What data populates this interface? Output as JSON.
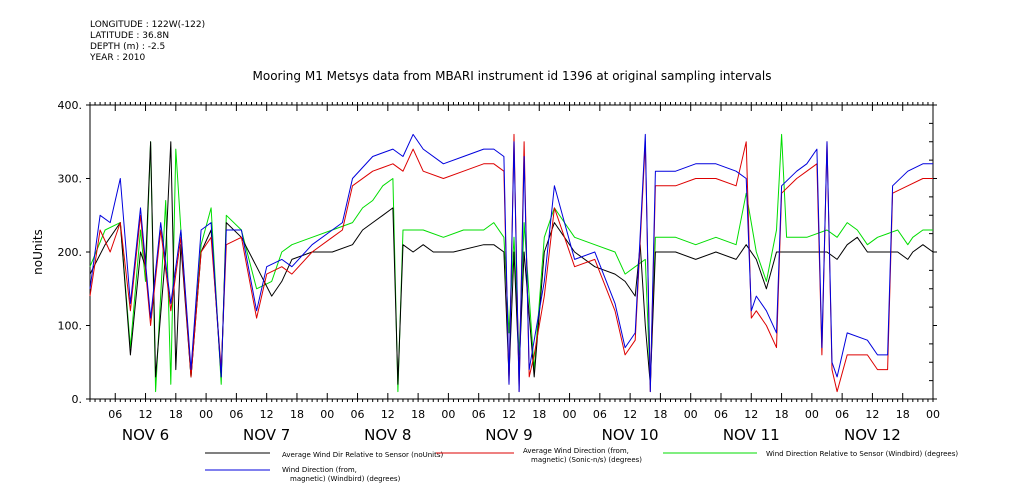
{
  "meta": {
    "longitude": "LONGITUDE : 122W(-122)",
    "latitude": "LATITUDE : 36.8N",
    "depth": "DEPTH (m) : -2.5",
    "year": "YEAR : 2010"
  },
  "colors": {
    "background": "#ffffff",
    "axis": "#000000",
    "series_black": "#000000",
    "series_red": "#dd0000",
    "series_green": "#00dd00",
    "series_blue": "#0000dd"
  },
  "chart_data": {
    "type": "line",
    "title": "Mooring M1 Metsys data from MBARI instrument id 1396 at original sampling intervals",
    "ylabel": "noUnits",
    "xlabel": "",
    "ylim": [
      0,
      400
    ],
    "yticks": [
      0,
      100,
      200,
      300,
      400
    ],
    "ytick_labels": [
      "0.",
      "100.",
      "200.",
      "300.",
      "400."
    ],
    "xlim_hours": [
      0,
      167
    ],
    "hour_tick_labels": [
      "06",
      "12",
      "18",
      "00",
      "06",
      "12",
      "18",
      "00",
      "06",
      "12",
      "18",
      "00",
      "06",
      "12",
      "18",
      "00",
      "06",
      "12",
      "18",
      "00",
      "06",
      "12",
      "18",
      "00",
      "06",
      "12",
      "18",
      "00"
    ],
    "day_labels": [
      "NOV  6",
      "NOV  7",
      "NOV  8",
      "NOV  9",
      "NOV 10",
      "NOV 11",
      "NOV 12"
    ],
    "grid": false,
    "legend_position": "bottom",
    "series": [
      {
        "name": "Average Wind Dir Relative to Sensor (noUnits)",
        "color": "#000000",
        "points": [
          [
            0,
            170
          ],
          [
            3,
            210
          ],
          [
            6,
            240
          ],
          [
            8,
            60
          ],
          [
            10,
            200
          ],
          [
            11,
            180
          ],
          [
            12,
            350
          ],
          [
            13,
            30
          ],
          [
            15,
            200
          ],
          [
            16,
            350
          ],
          [
            17,
            40
          ],
          [
            18,
            210
          ],
          [
            20,
            30
          ],
          [
            22,
            200
          ],
          [
            24,
            230
          ],
          [
            26,
            30
          ],
          [
            27,
            240
          ],
          [
            30,
            220
          ],
          [
            33,
            180
          ],
          [
            36,
            140
          ],
          [
            38,
            160
          ],
          [
            40,
            190
          ],
          [
            44,
            200
          ],
          [
            48,
            200
          ],
          [
            52,
            210
          ],
          [
            54,
            230
          ],
          [
            56,
            240
          ],
          [
            58,
            250
          ],
          [
            60,
            260
          ],
          [
            61,
            20
          ],
          [
            62,
            210
          ],
          [
            64,
            200
          ],
          [
            66,
            210
          ],
          [
            68,
            200
          ],
          [
            72,
            200
          ],
          [
            78,
            210
          ],
          [
            80,
            210
          ],
          [
            82,
            200
          ],
          [
            83,
            30
          ],
          [
            84,
            200
          ],
          [
            85,
            40
          ],
          [
            86,
            200
          ],
          [
            88,
            30
          ],
          [
            90,
            200
          ],
          [
            92,
            240
          ],
          [
            94,
            220
          ],
          [
            96,
            200
          ],
          [
            100,
            180
          ],
          [
            104,
            170
          ],
          [
            106,
            160
          ],
          [
            108,
            140
          ],
          [
            109,
            210
          ],
          [
            110,
            100
          ],
          [
            111,
            20
          ],
          [
            112,
            200
          ],
          [
            116,
            200
          ],
          [
            120,
            190
          ],
          [
            124,
            200
          ],
          [
            128,
            190
          ],
          [
            130,
            210
          ],
          [
            132,
            190
          ],
          [
            134,
            150
          ],
          [
            136,
            200
          ],
          [
            138,
            200
          ],
          [
            142,
            200
          ],
          [
            146,
            200
          ],
          [
            148,
            190
          ],
          [
            150,
            210
          ],
          [
            152,
            220
          ],
          [
            154,
            200
          ],
          [
            156,
            200
          ],
          [
            160,
            200
          ],
          [
            162,
            190
          ],
          [
            163,
            200
          ],
          [
            165,
            210
          ],
          [
            167,
            200
          ]
        ]
      },
      {
        "name": "Average Wind Direction (from, magnetic) (Sonic-n/s) (degrees)",
        "color": "#dd0000",
        "points": [
          [
            0,
            140
          ],
          [
            2,
            230
          ],
          [
            4,
            200
          ],
          [
            6,
            240
          ],
          [
            8,
            120
          ],
          [
            10,
            250
          ],
          [
            12,
            100
          ],
          [
            14,
            230
          ],
          [
            16,
            120
          ],
          [
            18,
            220
          ],
          [
            20,
            30
          ],
          [
            22,
            200
          ],
          [
            24,
            220
          ],
          [
            26,
            40
          ],
          [
            27,
            210
          ],
          [
            30,
            220
          ],
          [
            33,
            110
          ],
          [
            35,
            170
          ],
          [
            38,
            180
          ],
          [
            40,
            170
          ],
          [
            44,
            200
          ],
          [
            48,
            220
          ],
          [
            50,
            230
          ],
          [
            52,
            290
          ],
          [
            56,
            310
          ],
          [
            60,
            320
          ],
          [
            62,
            310
          ],
          [
            64,
            340
          ],
          [
            66,
            310
          ],
          [
            70,
            300
          ],
          [
            74,
            310
          ],
          [
            78,
            320
          ],
          [
            80,
            320
          ],
          [
            82,
            310
          ],
          [
            83,
            20
          ],
          [
            84,
            360
          ],
          [
            85,
            10
          ],
          [
            86,
            350
          ],
          [
            87,
            30
          ],
          [
            88,
            60
          ],
          [
            90,
            140
          ],
          [
            92,
            260
          ],
          [
            94,
            220
          ],
          [
            96,
            180
          ],
          [
            100,
            190
          ],
          [
            104,
            120
          ],
          [
            106,
            60
          ],
          [
            108,
            80
          ],
          [
            110,
            350
          ],
          [
            111,
            10
          ],
          [
            112,
            290
          ],
          [
            116,
            290
          ],
          [
            120,
            300
          ],
          [
            124,
            300
          ],
          [
            128,
            290
          ],
          [
            130,
            350
          ],
          [
            131,
            110
          ],
          [
            132,
            120
          ],
          [
            134,
            100
          ],
          [
            136,
            70
          ],
          [
            137,
            280
          ],
          [
            140,
            300
          ],
          [
            142,
            310
          ],
          [
            144,
            320
          ],
          [
            145,
            60
          ],
          [
            146,
            350
          ],
          [
            147,
            40
          ],
          [
            148,
            10
          ],
          [
            150,
            60
          ],
          [
            154,
            60
          ],
          [
            156,
            40
          ],
          [
            158,
            40
          ],
          [
            159,
            280
          ],
          [
            162,
            290
          ],
          [
            165,
            300
          ],
          [
            167,
            300
          ]
        ]
      },
      {
        "name": "Wind Direction Relative to Sensor (Windbird) (degrees)",
        "color": "#00dd00",
        "points": [
          [
            0,
            180
          ],
          [
            3,
            230
          ],
          [
            6,
            240
          ],
          [
            8,
            70
          ],
          [
            10,
            230
          ],
          [
            11,
            160
          ],
          [
            12,
            350
          ],
          [
            13,
            10
          ],
          [
            15,
            270
          ],
          [
            16,
            20
          ],
          [
            17,
            340
          ],
          [
            18,
            230
          ],
          [
            20,
            30
          ],
          [
            22,
            210
          ],
          [
            24,
            260
          ],
          [
            26,
            20
          ],
          [
            27,
            250
          ],
          [
            30,
            230
          ],
          [
            33,
            150
          ],
          [
            36,
            160
          ],
          [
            38,
            200
          ],
          [
            40,
            210
          ],
          [
            44,
            220
          ],
          [
            48,
            230
          ],
          [
            52,
            240
          ],
          [
            54,
            260
          ],
          [
            56,
            270
          ],
          [
            58,
            290
          ],
          [
            60,
            300
          ],
          [
            61,
            10
          ],
          [
            62,
            230
          ],
          [
            66,
            230
          ],
          [
            70,
            220
          ],
          [
            74,
            230
          ],
          [
            78,
            230
          ],
          [
            80,
            240
          ],
          [
            82,
            220
          ],
          [
            83,
            90
          ],
          [
            84,
            220
          ],
          [
            85,
            60
          ],
          [
            86,
            240
          ],
          [
            88,
            40
          ],
          [
            90,
            220
          ],
          [
            92,
            260
          ],
          [
            94,
            240
          ],
          [
            96,
            220
          ],
          [
            100,
            210
          ],
          [
            104,
            200
          ],
          [
            106,
            170
          ],
          [
            108,
            180
          ],
          [
            110,
            190
          ],
          [
            111,
            20
          ],
          [
            112,
            220
          ],
          [
            116,
            220
          ],
          [
            120,
            210
          ],
          [
            124,
            220
          ],
          [
            128,
            210
          ],
          [
            130,
            280
          ],
          [
            132,
            200
          ],
          [
            134,
            160
          ],
          [
            136,
            230
          ],
          [
            137,
            360
          ],
          [
            138,
            220
          ],
          [
            142,
            220
          ],
          [
            146,
            230
          ],
          [
            148,
            220
          ],
          [
            150,
            240
          ],
          [
            152,
            230
          ],
          [
            154,
            210
          ],
          [
            156,
            220
          ],
          [
            160,
            230
          ],
          [
            162,
            210
          ],
          [
            163,
            220
          ],
          [
            165,
            230
          ],
          [
            167,
            230
          ]
        ]
      },
      {
        "name": "Wind Direction (from, magnetic) (Windbird) (degrees)",
        "color": "#0000dd",
        "points": [
          [
            0,
            150
          ],
          [
            2,
            250
          ],
          [
            4,
            240
          ],
          [
            6,
            300
          ],
          [
            8,
            130
          ],
          [
            10,
            260
          ],
          [
            12,
            110
          ],
          [
            14,
            240
          ],
          [
            16,
            130
          ],
          [
            18,
            230
          ],
          [
            20,
            40
          ],
          [
            22,
            230
          ],
          [
            24,
            240
          ],
          [
            26,
            30
          ],
          [
            27,
            230
          ],
          [
            30,
            230
          ],
          [
            33,
            120
          ],
          [
            35,
            180
          ],
          [
            38,
            190
          ],
          [
            40,
            180
          ],
          [
            44,
            210
          ],
          [
            48,
            230
          ],
          [
            50,
            240
          ],
          [
            52,
            300
          ],
          [
            56,
            330
          ],
          [
            60,
            340
          ],
          [
            62,
            330
          ],
          [
            64,
            360
          ],
          [
            66,
            340
          ],
          [
            70,
            320
          ],
          [
            74,
            330
          ],
          [
            78,
            340
          ],
          [
            80,
            340
          ],
          [
            82,
            330
          ],
          [
            83,
            20
          ],
          [
            84,
            350
          ],
          [
            85,
            10
          ],
          [
            86,
            330
          ],
          [
            87,
            40
          ],
          [
            88,
            80
          ],
          [
            90,
            160
          ],
          [
            92,
            290
          ],
          [
            94,
            240
          ],
          [
            96,
            190
          ],
          [
            100,
            200
          ],
          [
            104,
            130
          ],
          [
            106,
            70
          ],
          [
            108,
            90
          ],
          [
            110,
            360
          ],
          [
            111,
            10
          ],
          [
            112,
            310
          ],
          [
            116,
            310
          ],
          [
            120,
            320
          ],
          [
            124,
            320
          ],
          [
            128,
            310
          ],
          [
            130,
            300
          ],
          [
            131,
            120
          ],
          [
            132,
            140
          ],
          [
            134,
            120
          ],
          [
            136,
            90
          ],
          [
            137,
            290
          ],
          [
            140,
            310
          ],
          [
            142,
            320
          ],
          [
            144,
            340
          ],
          [
            145,
            70
          ],
          [
            146,
            350
          ],
          [
            147,
            50
          ],
          [
            148,
            30
          ],
          [
            150,
            90
          ],
          [
            154,
            80
          ],
          [
            156,
            60
          ],
          [
            158,
            60
          ],
          [
            159,
            290
          ],
          [
            162,
            310
          ],
          [
            165,
            320
          ],
          [
            167,
            320
          ]
        ]
      }
    ]
  },
  "legend": [
    {
      "lines": [
        "Average Wind Dir Relative to Sensor (noUnits)"
      ]
    },
    {
      "lines": [
        "Average Wind Direction (from,",
        "magnetic) (Sonic-n/s) (degrees)"
      ]
    },
    {
      "lines": [
        "Wind Direction Relative to Sensor (Windbird) (degrees)"
      ]
    },
    {
      "lines": [
        "Wind Direction (from,",
        "magnetic) (Windbird) (degrees)"
      ]
    }
  ]
}
